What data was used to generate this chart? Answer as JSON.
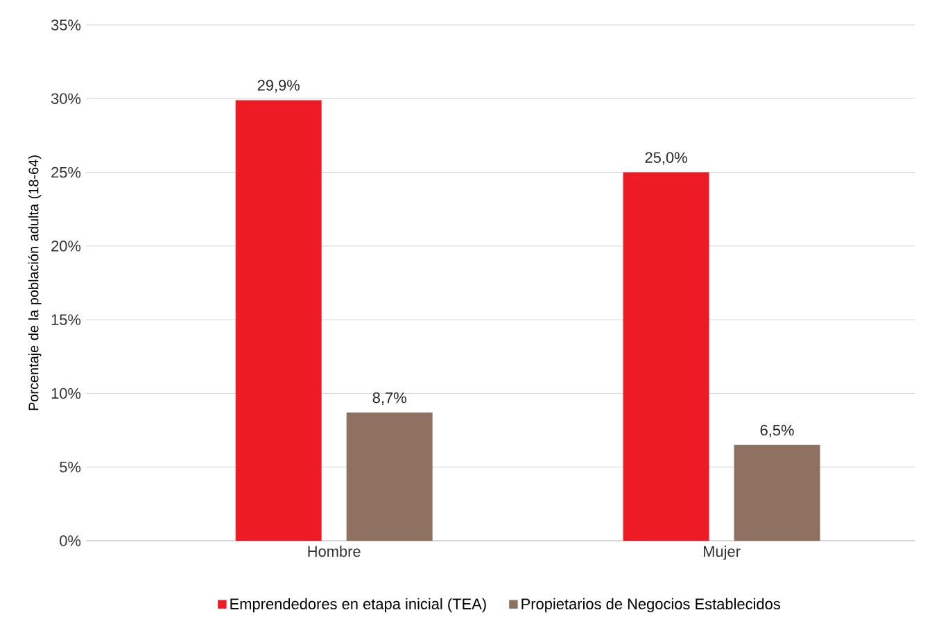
{
  "chart_data": {
    "type": "bar",
    "ylabel": "Porcentaje de la población adulta (18-64)",
    "categories": [
      "Hombre",
      "Mujer"
    ],
    "series": [
      {
        "name": "Emprendedores en etapa inicial (TEA)",
        "color": "#ed1c24",
        "values": [
          29.9,
          25.0
        ],
        "value_labels": [
          "29,9%",
          "25,0%"
        ]
      },
      {
        "name": "Propietarios de Negocios Establecidos",
        "color": "#8f7162",
        "values": [
          8.7,
          6.5
        ],
        "value_labels": [
          "8,7%",
          "6,5%"
        ]
      }
    ],
    "ylim": [
      0,
      35
    ],
    "yticks": [
      {
        "value": 0,
        "label": "0%"
      },
      {
        "value": 5,
        "label": "5%"
      },
      {
        "value": 10,
        "label": "10%"
      },
      {
        "value": 15,
        "label": "15%"
      },
      {
        "value": 20,
        "label": "20%"
      },
      {
        "value": 25,
        "label": "25%"
      },
      {
        "value": 30,
        "label": "30%"
      },
      {
        "value": 35,
        "label": "35%"
      }
    ],
    "grid": "y",
    "legend": "bottom"
  }
}
